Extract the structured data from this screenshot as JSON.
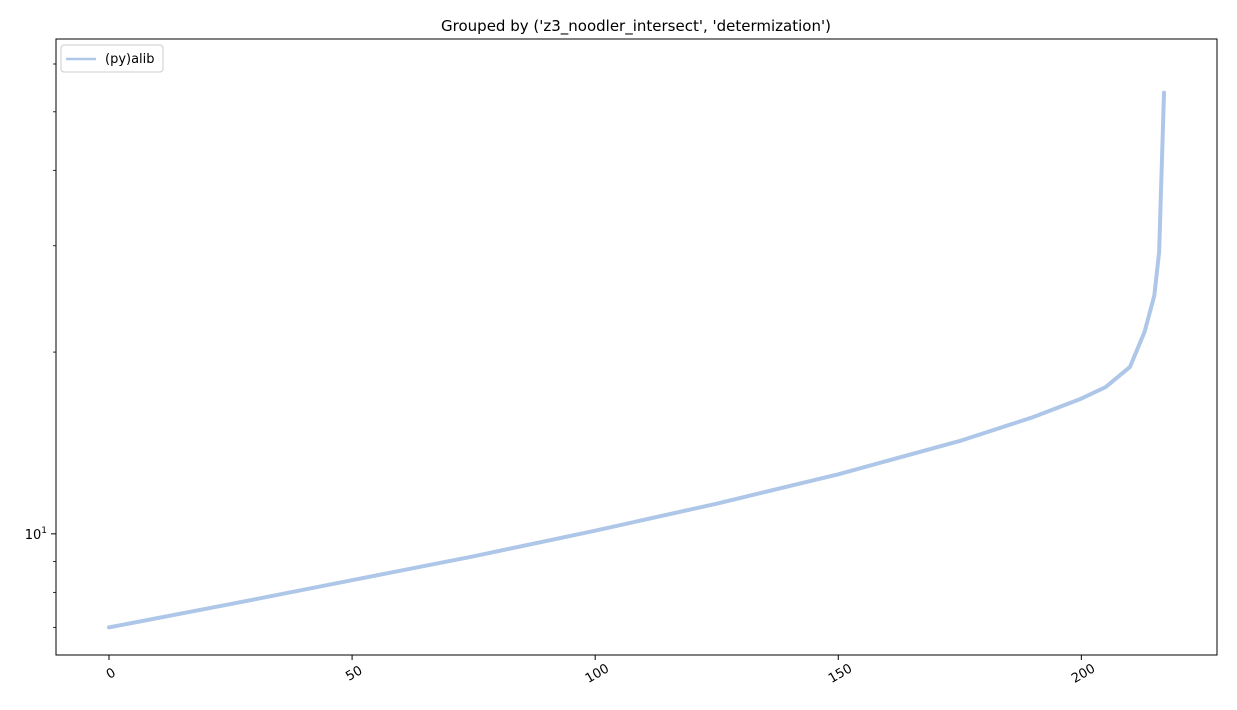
{
  "chart_data": {
    "type": "line",
    "title": "Grouped by ('z3_noodler_intersect', 'determization')",
    "xlabel": "",
    "ylabel": "",
    "xlim": [
      -10.9,
      227.9
    ],
    "ylim": [
      6.3,
      66
    ],
    "yscale": "log",
    "x_ticks": [
      0,
      50,
      100,
      150,
      200
    ],
    "x_tick_labels": [
      "0",
      "50",
      "100",
      "150",
      "200"
    ],
    "y_ticks": [
      {
        "value": 10,
        "base": "10",
        "exponent": "1"
      }
    ],
    "grid": false,
    "legend": {
      "position": "upper-left",
      "entries": [
        "(py)alib"
      ]
    },
    "series": [
      {
        "name": "(py)alib",
        "color": "#aec7e8",
        "x": [
          0,
          25,
          50,
          75,
          100,
          125,
          150,
          175,
          190,
          200,
          205,
          210,
          213,
          215,
          216,
          217
        ],
        "y": [
          7.0,
          7.65,
          8.38,
          9.18,
          10.12,
          11.22,
          12.55,
          14.25,
          15.6,
          16.75,
          17.5,
          18.9,
          21.6,
          24.8,
          29.3,
          53.8
        ]
      }
    ]
  }
}
